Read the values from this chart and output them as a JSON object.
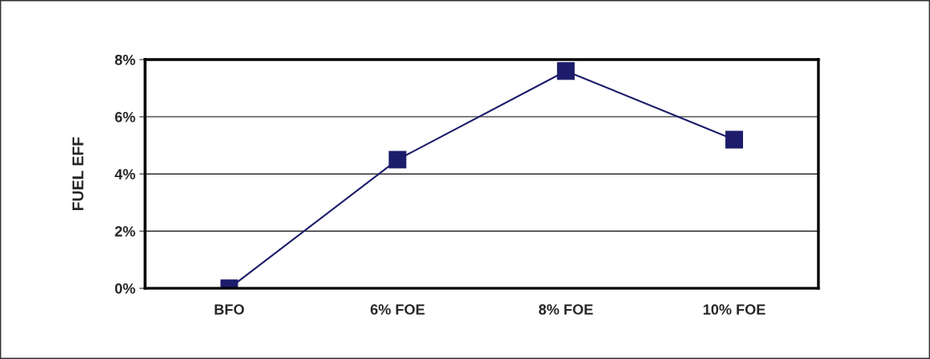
{
  "chart_data": {
    "type": "line",
    "ylabel": "FUEL EFF",
    "categories": [
      "BFO",
      "6% FOE",
      "8% FOE",
      "10% FOE"
    ],
    "series": [
      {
        "color": "#1c1c6b",
        "values": [
          0,
          4.5,
          7.6,
          5.2
        ]
      }
    ],
    "ylim": [
      0,
      8
    ],
    "yticks": [
      {
        "value": 0,
        "label": "0%"
      },
      {
        "value": 2,
        "label": "2%"
      },
      {
        "value": 4,
        "label": "4%"
      },
      {
        "value": 6,
        "label": "6%"
      },
      {
        "value": 8,
        "label": "8%"
      }
    ],
    "grid": "y",
    "marker": "square",
    "line_style": "solid",
    "legend": false
  }
}
